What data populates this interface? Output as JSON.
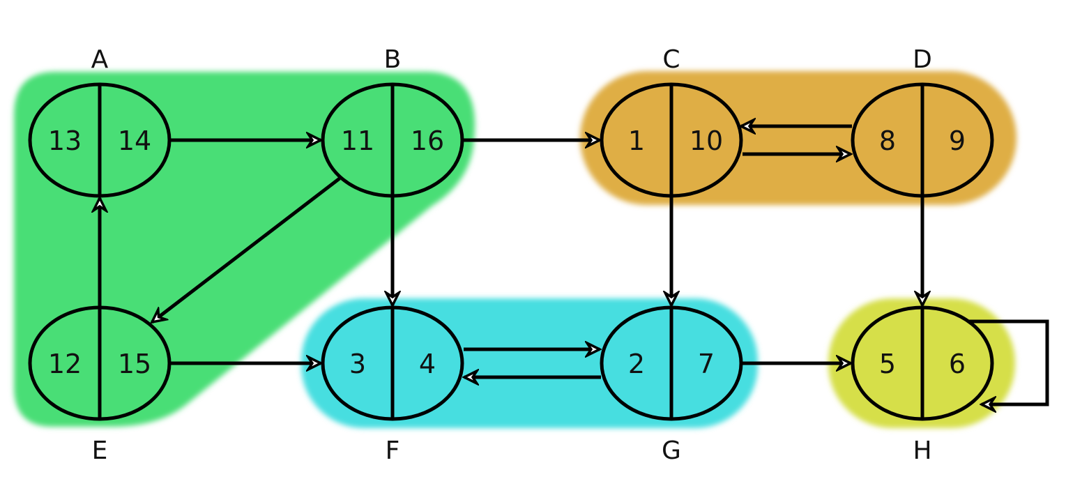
{
  "colors": {
    "green": "#4ade76",
    "orange": "#dfae45",
    "cyan": "#47dee0",
    "yellow": "#d6df48"
  },
  "nodes": [
    {
      "id": "A",
      "label": "A",
      "discovery": "13",
      "finish": "14"
    },
    {
      "id": "B",
      "label": "B",
      "discovery": "11",
      "finish": "16"
    },
    {
      "id": "C",
      "label": "C",
      "discovery": "1",
      "finish": "10"
    },
    {
      "id": "D",
      "label": "D",
      "discovery": "8",
      "finish": "9"
    },
    {
      "id": "E",
      "label": "E",
      "discovery": "12",
      "finish": "15"
    },
    {
      "id": "F",
      "label": "F",
      "discovery": "3",
      "finish": "4"
    },
    {
      "id": "G",
      "label": "G",
      "discovery": "2",
      "finish": "7"
    },
    {
      "id": "H",
      "label": "H",
      "discovery": "5",
      "finish": "6"
    }
  ],
  "edges": [
    {
      "from": "A",
      "to": "B"
    },
    {
      "from": "B",
      "to": "C"
    },
    {
      "from": "B",
      "to": "E"
    },
    {
      "from": "B",
      "to": "F"
    },
    {
      "from": "E",
      "to": "A"
    },
    {
      "from": "E",
      "to": "F"
    },
    {
      "from": "C",
      "to": "D"
    },
    {
      "from": "D",
      "to": "C"
    },
    {
      "from": "C",
      "to": "G"
    },
    {
      "from": "D",
      "to": "H"
    },
    {
      "from": "F",
      "to": "G"
    },
    {
      "from": "G",
      "to": "F"
    },
    {
      "from": "G",
      "to": "H"
    },
    {
      "from": "H",
      "to": "H"
    }
  ],
  "components": [
    {
      "name": "scc-abe",
      "nodes": [
        "A",
        "B",
        "E"
      ],
      "color": "green"
    },
    {
      "name": "scc-cd",
      "nodes": [
        "C",
        "D"
      ],
      "color": "orange"
    },
    {
      "name": "scc-fg",
      "nodes": [
        "F",
        "G"
      ],
      "color": "cyan"
    },
    {
      "name": "scc-h",
      "nodes": [
        "H"
      ],
      "color": "yellow"
    }
  ]
}
